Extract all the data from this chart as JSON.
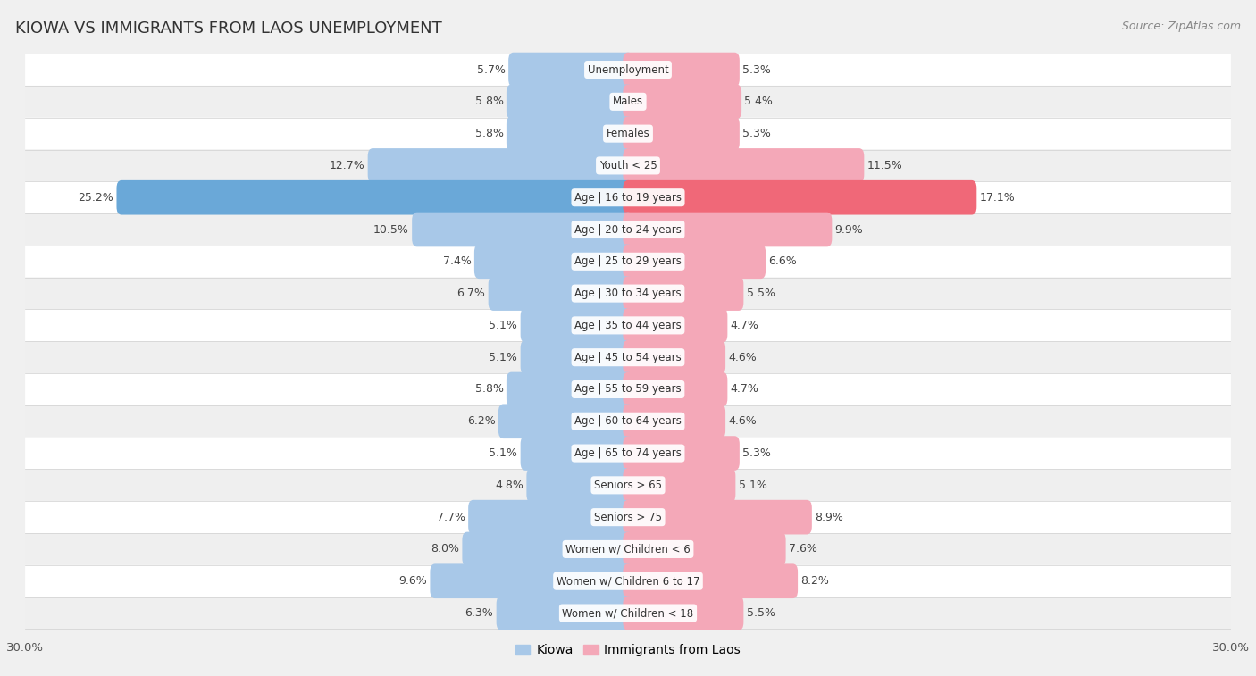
{
  "title": "KIOWA VS IMMIGRANTS FROM LAOS UNEMPLOYMENT",
  "source": "Source: ZipAtlas.com",
  "categories": [
    "Unemployment",
    "Males",
    "Females",
    "Youth < 25",
    "Age | 16 to 19 years",
    "Age | 20 to 24 years",
    "Age | 25 to 29 years",
    "Age | 30 to 34 years",
    "Age | 35 to 44 years",
    "Age | 45 to 54 years",
    "Age | 55 to 59 years",
    "Age | 60 to 64 years",
    "Age | 65 to 74 years",
    "Seniors > 65",
    "Seniors > 75",
    "Women w/ Children < 6",
    "Women w/ Children 6 to 17",
    "Women w/ Children < 18"
  ],
  "kiowa_values": [
    5.7,
    5.8,
    5.8,
    12.7,
    25.2,
    10.5,
    7.4,
    6.7,
    5.1,
    5.1,
    5.8,
    6.2,
    5.1,
    4.8,
    7.7,
    8.0,
    9.6,
    6.3
  ],
  "laos_values": [
    5.3,
    5.4,
    5.3,
    11.5,
    17.1,
    9.9,
    6.6,
    5.5,
    4.7,
    4.6,
    4.7,
    4.6,
    5.3,
    5.1,
    8.9,
    7.6,
    8.2,
    5.5
  ],
  "kiowa_color": "#a8c8e8",
  "laos_color": "#f4a8b8",
  "kiowa_color_highlight": "#6aa8d8",
  "laos_color_highlight": "#f06878",
  "row_color_light": "#f5f5f5",
  "row_color_dark": "#e8e8e8",
  "separator_color": "#d0d0d0",
  "background_color": "#f0f0f0",
  "xlim": 30.0,
  "bar_height": 0.58,
  "label_fontsize": 9.0,
  "category_fontsize": 8.5,
  "title_fontsize": 13,
  "source_fontsize": 9,
  "highlight_index": 4
}
